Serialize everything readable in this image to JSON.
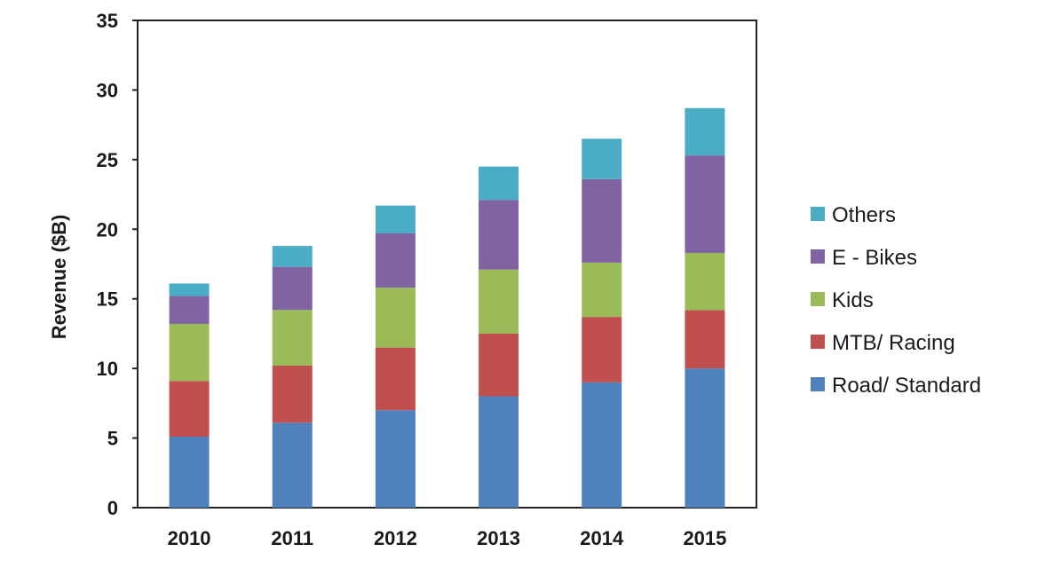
{
  "chart_data": {
    "type": "bar",
    "stacked": true,
    "title": "",
    "xlabel": "",
    "ylabel": "Revenue ($B)",
    "ylim": [
      0,
      35
    ],
    "yticks": [
      0,
      5,
      10,
      15,
      20,
      25,
      30,
      35
    ],
    "grid": false,
    "legend_position": "right",
    "categories": [
      "2010",
      "2011",
      "2012",
      "2013",
      "2014",
      "2015"
    ],
    "series": [
      {
        "name": "Road/ Standard",
        "color": "#4f81bd",
        "values": [
          5.1,
          6.1,
          7.0,
          8.0,
          9.0,
          10.0
        ]
      },
      {
        "name": "MTB/ Racing",
        "color": "#c0504d",
        "values": [
          4.0,
          4.1,
          4.5,
          4.5,
          4.7,
          4.2
        ]
      },
      {
        "name": "Kids",
        "color": "#9bbb59",
        "values": [
          4.1,
          4.0,
          4.3,
          4.6,
          3.9,
          4.1
        ]
      },
      {
        "name": "E - Bikes",
        "color": "#8064a2",
        "values": [
          2.0,
          3.1,
          3.9,
          5.0,
          6.0,
          7.0
        ]
      },
      {
        "name": "Others",
        "color": "#4bacc6",
        "values": [
          0.9,
          1.5,
          2.0,
          2.4,
          2.9,
          3.4
        ]
      }
    ]
  }
}
